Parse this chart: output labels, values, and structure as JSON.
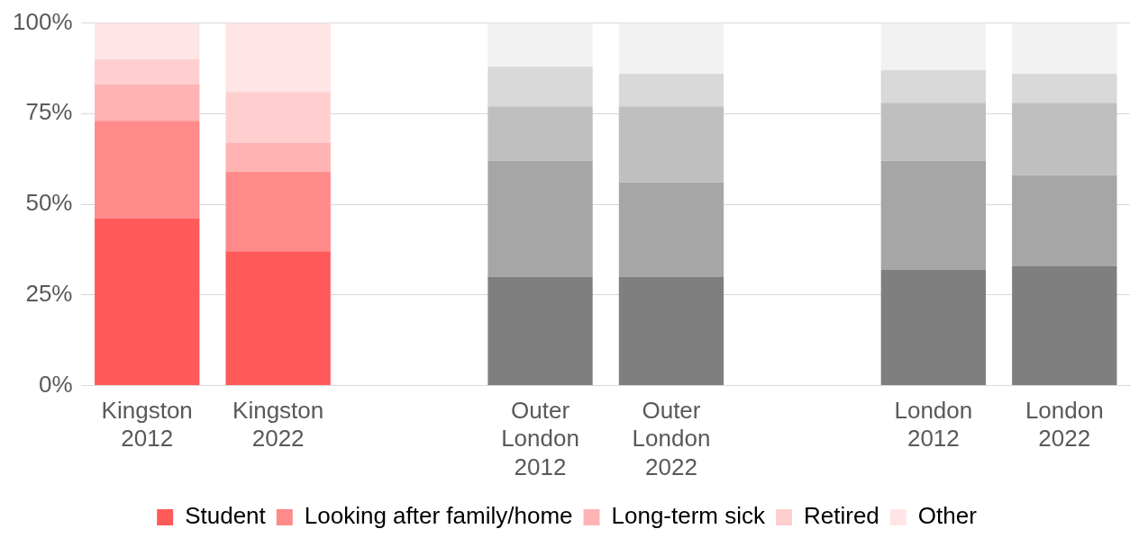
{
  "chart_data": {
    "type": "bar",
    "stacked": true,
    "categories": [
      "Kingston 2012",
      "Kingston 2022",
      null,
      "Outer London 2012",
      "Outer London 2022",
      null,
      "London 2012",
      "London 2022"
    ],
    "series": [
      {
        "name": "Student",
        "color": "#ff5a5a",
        "colors": [
          "#ff5a5a",
          "#ff5a5a",
          null,
          "#7f7f7f",
          "#7f7f7f",
          null,
          "#7f7f7f",
          "#7f7f7f"
        ],
        "values": [
          46,
          37,
          null,
          30,
          30,
          null,
          32,
          33
        ]
      },
      {
        "name": "Looking after family/home",
        "color": "#ff8a8a",
        "colors": [
          "#ff8a8a",
          "#ff8a8a",
          null,
          "#a6a6a6",
          "#a6a6a6",
          null,
          "#a6a6a6",
          "#a6a6a6"
        ],
        "values": [
          27,
          22,
          null,
          32,
          26,
          null,
          30,
          25
        ]
      },
      {
        "name": "Long-term sick",
        "color": "#ffb3b3",
        "colors": [
          "#ffb3b3",
          "#ffb3b3",
          null,
          "#bfbfbf",
          "#bfbfbf",
          null,
          "#bfbfbf",
          "#bfbfbf"
        ],
        "values": [
          10,
          8,
          null,
          15,
          21,
          null,
          16,
          20
        ]
      },
      {
        "name": "Retired",
        "color": "#ffcfcf",
        "colors": [
          "#ffcfcf",
          "#ffcfcf",
          null,
          "#d9d9d9",
          "#d9d9d9",
          null,
          "#d9d9d9",
          "#d9d9d9"
        ],
        "values": [
          7,
          14,
          null,
          11,
          9,
          null,
          9,
          8
        ]
      },
      {
        "name": "Other",
        "color": "#ffe5e5",
        "colors": [
          "#ffe5e5",
          "#ffe5e5",
          null,
          "#f2f2f2",
          "#f2f2f2",
          null,
          "#f2f2f2",
          "#f2f2f2"
        ],
        "values": [
          10,
          19,
          null,
          12,
          14,
          null,
          13,
          14
        ]
      }
    ],
    "ylim": [
      0,
      100
    ],
    "yticks": [
      {
        "value": 0,
        "label": "0%"
      },
      {
        "value": 25,
        "label": "25%"
      },
      {
        "value": 50,
        "label": "50%"
      },
      {
        "value": 75,
        "label": "75%"
      },
      {
        "value": 100,
        "label": "100%"
      }
    ],
    "grid": "y",
    "legend": "bottom"
  }
}
